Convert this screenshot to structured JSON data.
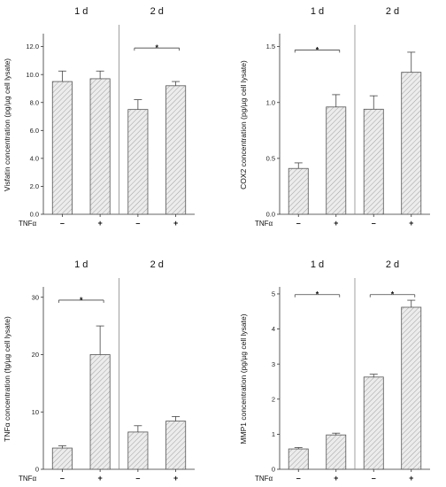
{
  "treatment_label": "TNFα",
  "treatment_signs": [
    "–",
    "+",
    "–",
    "+"
  ],
  "significance_marker": "*",
  "bar_color": "#e6e6e6",
  "chart_data": [
    {
      "type": "bar",
      "ylabel": "Visfatin concentration (pg/µg cell lysate)",
      "groups": [
        "1 d",
        "2 d"
      ],
      "categories": [
        "1 d –",
        "1 d +",
        "2 d –",
        "2 d +"
      ],
      "values": [
        9.5,
        9.7,
        7.5,
        9.2
      ],
      "errors": [
        0.75,
        0.55,
        0.7,
        0.3
      ],
      "ylim": [
        0,
        12.8
      ],
      "yticks": [
        0.0,
        2.0,
        4.0,
        6.0,
        8.0,
        10.0,
        12.0
      ],
      "ytick_labels": [
        "0.0",
        "2.0",
        "4.0",
        "6.0",
        "8.0",
        "10.0",
        "12.0"
      ],
      "significance": [
        {
          "from": 2,
          "to": 3,
          "y": 11.9
        }
      ]
    },
    {
      "type": "bar",
      "ylabel": "COX2 concentration (pg/µg cell lysate)",
      "groups": [
        "1 d",
        "2 d"
      ],
      "categories": [
        "1 d –",
        "1 d +",
        "2 d –",
        "2 d +"
      ],
      "values": [
        0.41,
        0.96,
        0.94,
        1.27
      ],
      "errors": [
        0.05,
        0.11,
        0.12,
        0.18
      ],
      "ylim": [
        0,
        1.6
      ],
      "yticks": [
        0.0,
        0.5,
        1.0,
        1.5
      ],
      "ytick_labels": [
        "0.0",
        "0.5",
        "1.0",
        "1.5"
      ],
      "significance": [
        {
          "from": 0,
          "to": 1,
          "y": 1.47
        }
      ]
    },
    {
      "type": "bar",
      "ylabel": "TNFα concentration (fg/µg cell lysate)",
      "groups": [
        "1 d",
        "2 d"
      ],
      "categories": [
        "1 d –",
        "1 d +",
        "2 d –",
        "2 d +"
      ],
      "values": [
        3.7,
        20.0,
        6.5,
        8.4
      ],
      "errors": [
        0.4,
        5.0,
        1.1,
        0.8
      ],
      "ylim": [
        0,
        31.5
      ],
      "yticks": [
        0,
        10,
        20,
        30
      ],
      "ytick_labels": [
        "0",
        "10",
        "20",
        "30"
      ],
      "significance": [
        {
          "from": 0,
          "to": 1,
          "y": 29.5
        }
      ]
    },
    {
      "type": "bar",
      "ylabel": "MMP1 concentration (pg/µg cell lysate)",
      "groups": [
        "1 d",
        "2 d"
      ],
      "categories": [
        "1 d –",
        "1 d +",
        "2 d –",
        "2 d +"
      ],
      "values": [
        0.58,
        0.98,
        2.63,
        4.62
      ],
      "errors": [
        0.04,
        0.05,
        0.08,
        0.2
      ],
      "ylim": [
        0,
        5.15
      ],
      "yticks": [
        0,
        1,
        2,
        3,
        4,
        5
      ],
      "ytick_labels": [
        "0",
        "1",
        "2",
        "3",
        "4",
        "5"
      ],
      "significance": [
        {
          "from": 0,
          "to": 1,
          "y": 4.98
        },
        {
          "from": 2,
          "to": 3,
          "y": 4.98
        }
      ]
    }
  ]
}
